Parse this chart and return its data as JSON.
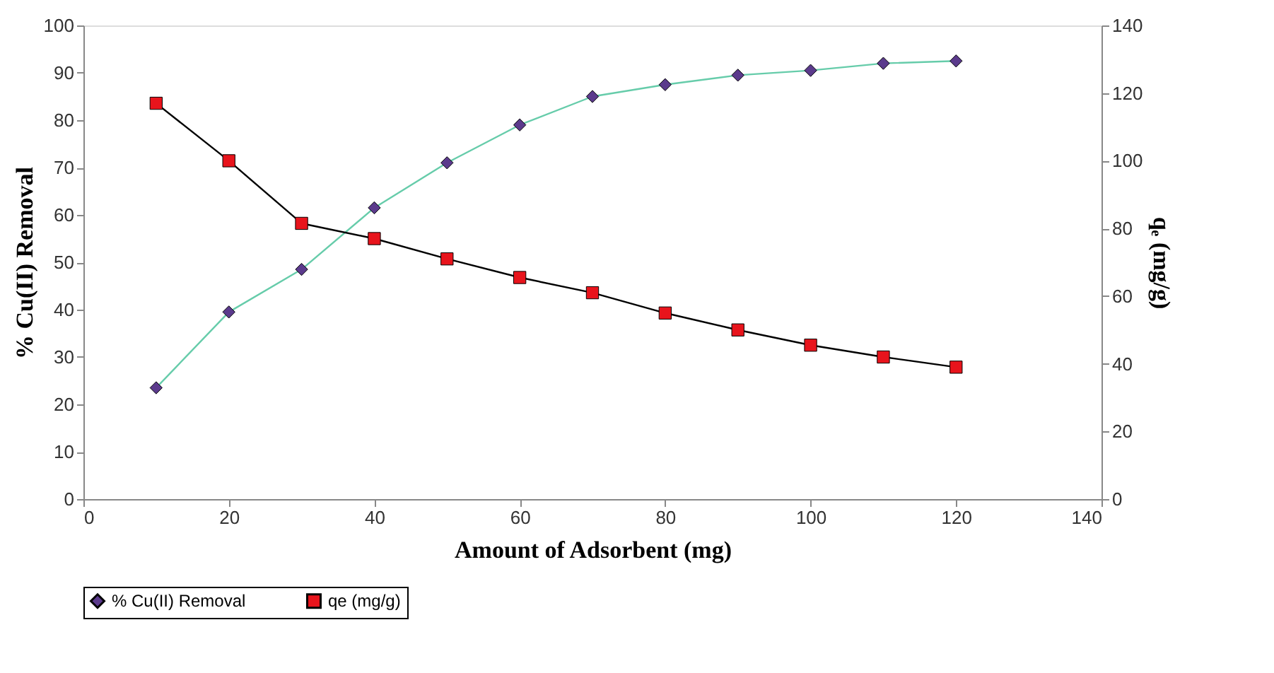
{
  "chart_data": {
    "type": "line",
    "xlabel": "Amount  of Adsorbent  (mg)",
    "ylabel": "% Cu(II)  Removal",
    "y2label": "qₑ (mg/g)",
    "x": [
      10,
      20,
      30,
      40,
      50,
      60,
      70,
      80,
      90,
      100,
      110,
      120
    ],
    "series": [
      {
        "name": "% Cu(II) Removal",
        "color": "#5b3a8c",
        "marker": "diamond",
        "values": [
          23.5,
          39.5,
          48.5,
          61.5,
          71,
          79,
          85,
          87.5,
          89.5,
          90.5,
          92,
          92.5
        ]
      },
      {
        "name": "qe (mg/g)",
        "color": "#e8141c",
        "marker": "square",
        "axis": "y2",
        "values": [
          117,
          100,
          81.5,
          77,
          71,
          65.5,
          61,
          55,
          50,
          45.5,
          42,
          39
        ]
      }
    ],
    "xlim": [
      0,
      140
    ],
    "xticks": [
      0,
      20,
      40,
      60,
      80,
      100,
      120,
      140
    ],
    "ylim": [
      0,
      100
    ],
    "yticks": [
      0,
      10,
      20,
      30,
      40,
      50,
      60,
      70,
      80,
      90,
      100
    ],
    "y2lim": [
      0,
      140
    ],
    "y2ticks": [
      0,
      20,
      40,
      60,
      80,
      100,
      120,
      140
    ],
    "grid": false,
    "legend": "bottom"
  }
}
